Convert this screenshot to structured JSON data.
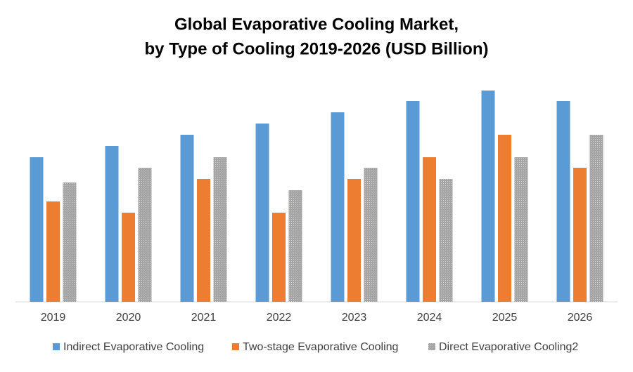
{
  "chart_data": {
    "type": "bar",
    "title": [
      "Global Evaporative Cooling Market,",
      "by Type of Cooling 2019-2026 (USD Billion)"
    ],
    "categories": [
      "2019",
      "2020",
      "2021",
      "2022",
      "2023",
      "2024",
      "2025",
      "2026"
    ],
    "series": [
      {
        "name": "Indirect Evaporative Cooling",
        "color": "#5b9bd5",
        "values": [
          20.6,
          22.2,
          23.8,
          25.4,
          27.0,
          28.6,
          30.1,
          28.6
        ]
      },
      {
        "name": "Two-stage Evaporative Cooling",
        "color": "#ed7d31",
        "values": [
          14.3,
          12.7,
          17.5,
          12.7,
          17.5,
          20.6,
          23.8,
          19.1
        ]
      },
      {
        "name": "Direct Evaporative Cooling2",
        "color": "#a5a5a5",
        "values": [
          17.0,
          19.1,
          20.6,
          15.9,
          19.1,
          17.5,
          20.6,
          23.8
        ]
      }
    ],
    "ylim": [
      0,
      32
    ],
    "legend": "bottom"
  }
}
